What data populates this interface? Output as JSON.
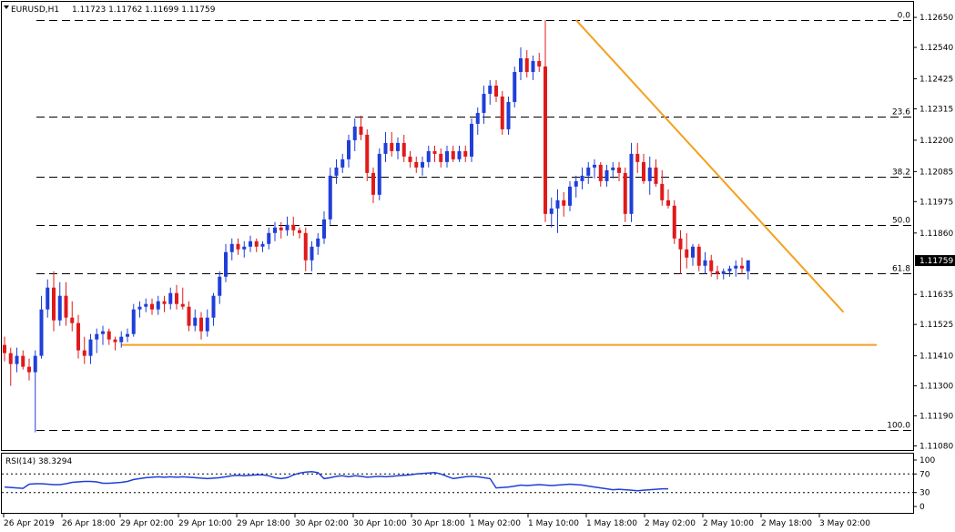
{
  "chart_data": {
    "type": "candlestick",
    "symbol": "EURUSD,H1",
    "ohlc_header": "1.11723 1.11762 1.11699 1.11759",
    "last_price": "1.11759",
    "y_axis_ticks": [
      "1.12650",
      "1.12540",
      "1.12425",
      "1.12315",
      "1.12200",
      "1.12085",
      "1.11975",
      "1.11860",
      "1.11635",
      "1.11525",
      "1.11410",
      "1.11300",
      "1.11190",
      "1.11080"
    ],
    "y_axis_ticks_values": [
      1.1265,
      1.1254,
      1.12425,
      1.12315,
      1.122,
      1.12085,
      1.11975,
      1.1186,
      1.11635,
      1.11525,
      1.1141,
      1.113,
      1.1119,
      1.1108
    ],
    "ylim": [
      1.11065,
      1.12707
    ],
    "x_axis_labels": [
      "26 Apr 2019",
      "26 Apr 18:00",
      "29 Apr 02:00",
      "29 Apr 10:00",
      "29 Apr 18:00",
      "30 Apr 02:00",
      "30 Apr 10:00",
      "30 Apr 18:00",
      "1 May 02:00",
      "1 May 10:00",
      "1 May 18:00",
      "2 May 02:00",
      "2 May 10:00",
      "2 May 18:00",
      "3 May 02:00"
    ],
    "fibonacci": {
      "high": 1.1264,
      "low": 1.1114,
      "levels": [
        {
          "label": "0.0",
          "ratio": 0
        },
        {
          "label": "23.6",
          "ratio": 0.236
        },
        {
          "label": "38.2",
          "ratio": 0.382
        },
        {
          "label": "50.0",
          "ratio": 0.5
        },
        {
          "label": "61.8",
          "ratio": 0.618
        },
        {
          "label": "100.0",
          "ratio": 1
        }
      ]
    },
    "trendline": {
      "from": {
        "bar": 93,
        "price": 1.1264
      },
      "to": {
        "bar": 134,
        "price": 1.1157
      }
    },
    "support_line": {
      "from_bar": 19,
      "to_bar": 134,
      "price": 1.1145
    },
    "colors": {
      "up": "#1f3fd9",
      "down": "#e01a1a",
      "trend": "#f5a020",
      "grid": "#000000",
      "rsi": "#1f3fd9"
    },
    "candles": [
      [
        1.1145,
        1.1148,
        1.1139,
        1.1142
      ],
      [
        1.1142,
        1.1144,
        1.113,
        1.1138
      ],
      [
        1.1138,
        1.1144,
        1.1135,
        1.1141
      ],
      [
        1.1141,
        1.1143,
        1.1136,
        1.1137
      ],
      [
        1.1137,
        1.114,
        1.1132,
        1.1135
      ],
      [
        1.1135,
        1.1143,
        1.1113,
        1.1141
      ],
      [
        1.1141,
        1.1163,
        1.114,
        1.1158
      ],
      [
        1.1158,
        1.1169,
        1.1155,
        1.1166
      ],
      [
        1.1166,
        1.1172,
        1.115,
        1.1154
      ],
      [
        1.1154,
        1.1168,
        1.1152,
        1.1163
      ],
      [
        1.1163,
        1.1168,
        1.1152,
        1.1155
      ],
      [
        1.1155,
        1.1161,
        1.115,
        1.1153
      ],
      [
        1.1153,
        1.1156,
        1.114,
        1.1143
      ],
      [
        1.1143,
        1.1148,
        1.1138,
        1.1141
      ],
      [
        1.1141,
        1.1149,
        1.1138,
        1.1147
      ],
      [
        1.1147,
        1.1151,
        1.1142,
        1.1149
      ],
      [
        1.1149,
        1.1152,
        1.1145,
        1.115
      ],
      [
        1.115,
        1.1151,
        1.1145,
        1.1147
      ],
      [
        1.1147,
        1.1148,
        1.1143,
        1.1146
      ],
      [
        1.1146,
        1.115,
        1.1144,
        1.1148
      ],
      [
        1.1148,
        1.1151,
        1.1146,
        1.1149
      ],
      [
        1.1149,
        1.116,
        1.1148,
        1.1158
      ],
      [
        1.1158,
        1.1161,
        1.1155,
        1.1159
      ],
      [
        1.1159,
        1.1162,
        1.1157,
        1.116
      ],
      [
        1.116,
        1.1162,
        1.1156,
        1.1158
      ],
      [
        1.1158,
        1.1163,
        1.1156,
        1.1161
      ],
      [
        1.1161,
        1.1163,
        1.1157,
        1.116
      ],
      [
        1.116,
        1.1166,
        1.1158,
        1.1164
      ],
      [
        1.1164,
        1.1167,
        1.1158,
        1.116
      ],
      [
        1.116,
        1.1166,
        1.1158,
        1.1159
      ],
      [
        1.1159,
        1.1161,
        1.115,
        1.1152
      ],
      [
        1.1152,
        1.1158,
        1.115,
        1.1155
      ],
      [
        1.1155,
        1.1157,
        1.1147,
        1.115
      ],
      [
        1.115,
        1.1158,
        1.1148,
        1.1155
      ],
      [
        1.1155,
        1.1164,
        1.1152,
        1.1163
      ],
      [
        1.1163,
        1.1172,
        1.116,
        1.117
      ],
      [
        1.117,
        1.1182,
        1.1168,
        1.1179
      ],
      [
        1.1179,
        1.1184,
        1.1176,
        1.1182
      ],
      [
        1.1182,
        1.1184,
        1.1178,
        1.118
      ],
      [
        1.118,
        1.1183,
        1.1177,
        1.1181
      ],
      [
        1.1181,
        1.1185,
        1.1179,
        1.1183
      ],
      [
        1.1183,
        1.1184,
        1.1179,
        1.1181
      ],
      [
        1.1181,
        1.1183,
        1.1179,
        1.1182
      ],
      [
        1.1182,
        1.1188,
        1.118,
        1.1186
      ],
      [
        1.1186,
        1.119,
        1.1183,
        1.1188
      ],
      [
        1.1188,
        1.119,
        1.1184,
        1.1187
      ],
      [
        1.1187,
        1.1192,
        1.1185,
        1.1189
      ],
      [
        1.1189,
        1.1192,
        1.1185,
        1.1187
      ],
      [
        1.1187,
        1.1188,
        1.1184,
        1.1186
      ],
      [
        1.1186,
        1.1188,
        1.1172,
        1.1176
      ],
      [
        1.1176,
        1.1183,
        1.1172,
        1.1181
      ],
      [
        1.1181,
        1.1186,
        1.1178,
        1.1184
      ],
      [
        1.1184,
        1.1194,
        1.1182,
        1.1191
      ],
      [
        1.1191,
        1.121,
        1.1189,
        1.1207
      ],
      [
        1.1207,
        1.1213,
        1.1204,
        1.121
      ],
      [
        1.121,
        1.1215,
        1.1208,
        1.1213
      ],
      [
        1.1213,
        1.1222,
        1.121,
        1.122
      ],
      [
        1.122,
        1.1228,
        1.1216,
        1.1225
      ],
      [
        1.1225,
        1.1229,
        1.122,
        1.1222
      ],
      [
        1.1222,
        1.1224,
        1.1205,
        1.1208
      ],
      [
        1.1208,
        1.121,
        1.1197,
        1.12
      ],
      [
        1.12,
        1.1217,
        1.1198,
        1.1215
      ],
      [
        1.1215,
        1.1223,
        1.1212,
        1.1219
      ],
      [
        1.1219,
        1.1223,
        1.1214,
        1.1216
      ],
      [
        1.1216,
        1.1221,
        1.1213,
        1.1219
      ],
      [
        1.1219,
        1.1222,
        1.1212,
        1.1214
      ],
      [
        1.1214,
        1.1216,
        1.121,
        1.1212
      ],
      [
        1.1212,
        1.1214,
        1.1208,
        1.121
      ],
      [
        1.121,
        1.1214,
        1.1207,
        1.1212
      ],
      [
        1.1212,
        1.1218,
        1.121,
        1.1216
      ],
      [
        1.1216,
        1.1218,
        1.1212,
        1.1215
      ],
      [
        1.1215,
        1.1217,
        1.121,
        1.1212
      ],
      [
        1.1212,
        1.1218,
        1.121,
        1.1216
      ],
      [
        1.1216,
        1.1218,
        1.1212,
        1.1213
      ],
      [
        1.1213,
        1.1218,
        1.1212,
        1.1216
      ],
      [
        1.1216,
        1.1218,
        1.1212,
        1.1214
      ],
      [
        1.1214,
        1.1228,
        1.1212,
        1.1226
      ],
      [
        1.1226,
        1.1232,
        1.1222,
        1.123
      ],
      [
        1.123,
        1.124,
        1.1226,
        1.1237
      ],
      [
        1.1237,
        1.1242,
        1.1233,
        1.124
      ],
      [
        1.124,
        1.1242,
        1.1234,
        1.1236
      ],
      [
        1.1236,
        1.1238,
        1.1222,
        1.1224
      ],
      [
        1.1224,
        1.1236,
        1.1222,
        1.1234
      ],
      [
        1.1234,
        1.1247,
        1.1232,
        1.1245
      ],
      [
        1.1245,
        1.1254,
        1.1242,
        1.125
      ],
      [
        1.125,
        1.1253,
        1.1243,
        1.1245
      ],
      [
        1.1245,
        1.1251,
        1.1242,
        1.1249
      ],
      [
        1.1249,
        1.1252,
        1.1245,
        1.1247
      ],
      [
        1.1247,
        1.1264,
        1.119,
        1.1193
      ],
      [
        1.1193,
        1.1199,
        1.1188,
        1.1195
      ],
      [
        1.1195,
        1.1202,
        1.1186,
        1.1198
      ],
      [
        1.1198,
        1.1201,
        1.1192,
        1.1196
      ],
      [
        1.1196,
        1.1205,
        1.1194,
        1.1203
      ],
      [
        1.1203,
        1.1207,
        1.1199,
        1.1205
      ],
      [
        1.1205,
        1.121,
        1.1202,
        1.1207
      ],
      [
        1.1207,
        1.1212,
        1.1204,
        1.121
      ],
      [
        1.121,
        1.1213,
        1.1206,
        1.1211
      ],
      [
        1.1211,
        1.1212,
        1.1203,
        1.1205
      ],
      [
        1.1205,
        1.1211,
        1.1203,
        1.1209
      ],
      [
        1.1209,
        1.1212,
        1.1206,
        1.121
      ],
      [
        1.121,
        1.1212,
        1.1205,
        1.1208
      ],
      [
        1.1208,
        1.121,
        1.119,
        1.1193
      ],
      [
        1.1193,
        1.1219,
        1.119,
        1.1215
      ],
      [
        1.1215,
        1.1219,
        1.1208,
        1.1212
      ],
      [
        1.1212,
        1.1215,
        1.1204,
        1.1205
      ],
      [
        1.1205,
        1.1214,
        1.12,
        1.121
      ],
      [
        1.121,
        1.1213,
        1.1203,
        1.1204
      ],
      [
        1.1204,
        1.1209,
        1.1196,
        1.1198
      ],
      [
        1.1198,
        1.1202,
        1.1195,
        1.1196
      ],
      [
        1.1196,
        1.1198,
        1.1182,
        1.1184
      ],
      [
        1.1184,
        1.1187,
        1.1171,
        1.118
      ],
      [
        1.118,
        1.1186,
        1.1173,
        1.1177
      ],
      [
        1.1177,
        1.1182,
        1.1174,
        1.1181
      ],
      [
        1.1181,
        1.1182,
        1.1172,
        1.1174
      ],
      [
        1.1174,
        1.1179,
        1.1171,
        1.1176
      ],
      [
        1.1176,
        1.1178,
        1.117,
        1.1172
      ],
      [
        1.1172,
        1.1174,
        1.1169,
        1.1171
      ],
      [
        1.1171,
        1.1173,
        1.1169,
        1.1172
      ],
      [
        1.1172,
        1.1174,
        1.117,
        1.1173
      ],
      [
        1.1173,
        1.1176,
        1.117,
        1.1174
      ],
      [
        1.1174,
        1.1177,
        1.1171,
        1.1173
      ],
      [
        1.1172,
        1.1176,
        1.1169,
        1.1176
      ]
    ],
    "rsi": {
      "label": "RSI(14) 38.3294",
      "levels": [
        100,
        70,
        30,
        0
      ],
      "values": [
        42,
        41,
        40,
        39,
        48,
        49,
        49,
        48,
        47,
        47,
        49,
        52,
        53,
        54,
        54,
        53,
        50,
        50,
        51,
        52,
        54,
        58,
        60,
        62,
        63,
        64,
        63,
        64,
        63,
        64,
        63,
        62,
        61,
        60,
        61,
        62,
        64,
        66,
        67,
        66,
        67,
        68,
        68,
        66,
        62,
        60,
        62,
        68,
        72,
        74,
        75,
        73,
        60,
        62,
        65,
        66,
        64,
        66,
        65,
        63,
        64,
        65,
        64,
        65,
        66,
        67,
        68,
        70,
        71,
        72,
        73,
        70,
        65,
        60,
        62,
        64,
        65,
        64,
        62,
        60,
        40,
        41,
        42,
        44,
        46,
        45,
        46,
        47,
        46,
        45,
        46,
        47,
        48,
        47,
        46,
        44,
        42,
        40,
        38,
        36,
        37,
        36,
        35,
        34,
        35,
        36,
        37,
        38,
        38
      ]
    }
  }
}
